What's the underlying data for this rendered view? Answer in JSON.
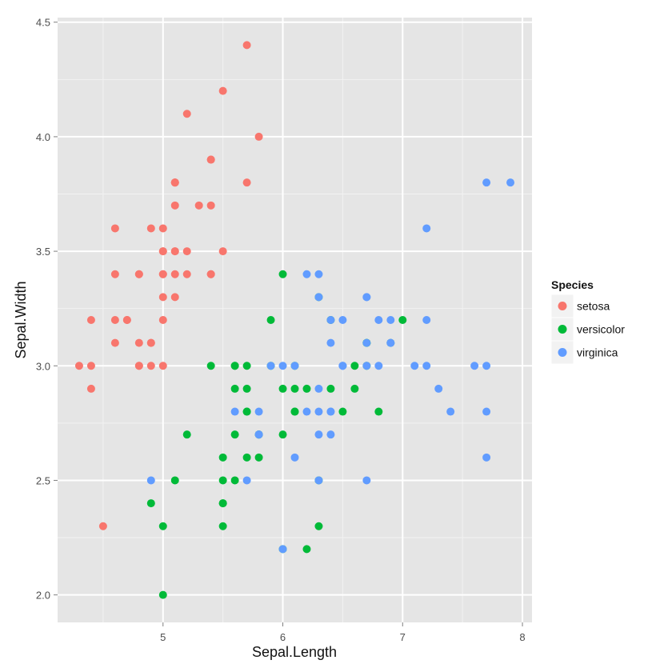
{
  "chart_data": {
    "type": "scatter",
    "xlabel": "Sepal.Length",
    "ylabel": "Sepal.Width",
    "xlim": [
      4.12,
      8.08
    ],
    "ylim": [
      1.88,
      4.52
    ],
    "x_ticks": [
      5,
      6,
      7,
      8
    ],
    "y_ticks": [
      2.0,
      2.5,
      3.0,
      3.5,
      4.0,
      4.5
    ],
    "x_tick_labels": [
      "5",
      "6",
      "7",
      "8"
    ],
    "y_tick_labels": [
      "2.0",
      "2.5",
      "3.0",
      "3.5",
      "4.0",
      "4.5"
    ],
    "grid": true,
    "background": "#e5e5e5",
    "legend": {
      "title": "Species",
      "position": "right"
    },
    "series": [
      {
        "name": "setosa",
        "color": "#f8766d",
        "points": [
          [
            5.1,
            3.5
          ],
          [
            4.9,
            3.0
          ],
          [
            4.7,
            3.2
          ],
          [
            4.6,
            3.1
          ],
          [
            5.0,
            3.6
          ],
          [
            5.4,
            3.9
          ],
          [
            4.6,
            3.4
          ],
          [
            5.0,
            3.4
          ],
          [
            4.4,
            2.9
          ],
          [
            4.9,
            3.1
          ],
          [
            5.4,
            3.7
          ],
          [
            4.8,
            3.4
          ],
          [
            4.8,
            3.0
          ],
          [
            4.3,
            3.0
          ],
          [
            5.8,
            4.0
          ],
          [
            5.7,
            4.4
          ],
          [
            5.4,
            3.9
          ],
          [
            5.1,
            3.5
          ],
          [
            5.7,
            3.8
          ],
          [
            5.1,
            3.8
          ],
          [
            5.4,
            3.4
          ],
          [
            5.1,
            3.7
          ],
          [
            4.6,
            3.6
          ],
          [
            5.1,
            3.3
          ],
          [
            4.8,
            3.4
          ],
          [
            5.0,
            3.0
          ],
          [
            5.0,
            3.4
          ],
          [
            5.2,
            3.5
          ],
          [
            5.2,
            3.4
          ],
          [
            4.7,
            3.2
          ],
          [
            4.8,
            3.1
          ],
          [
            5.4,
            3.4
          ],
          [
            5.2,
            4.1
          ],
          [
            5.5,
            4.2
          ],
          [
            4.9,
            3.1
          ],
          [
            5.0,
            3.2
          ],
          [
            5.5,
            3.5
          ],
          [
            4.9,
            3.6
          ],
          [
            4.4,
            3.0
          ],
          [
            5.1,
            3.4
          ],
          [
            5.0,
            3.5
          ],
          [
            4.5,
            2.3
          ],
          [
            4.4,
            3.2
          ],
          [
            5.0,
            3.5
          ],
          [
            5.1,
            3.8
          ],
          [
            4.8,
            3.0
          ],
          [
            5.1,
            3.8
          ],
          [
            4.6,
            3.2
          ],
          [
            5.3,
            3.7
          ],
          [
            5.0,
            3.3
          ]
        ]
      },
      {
        "name": "versicolor",
        "color": "#00ba38",
        "points": [
          [
            7.0,
            3.2
          ],
          [
            6.4,
            3.2
          ],
          [
            6.9,
            3.1
          ],
          [
            5.5,
            2.3
          ],
          [
            6.5,
            2.8
          ],
          [
            5.7,
            2.8
          ],
          [
            6.3,
            3.3
          ],
          [
            4.9,
            2.4
          ],
          [
            6.6,
            2.9
          ],
          [
            5.2,
            2.7
          ],
          [
            5.0,
            2.0
          ],
          [
            5.9,
            3.0
          ],
          [
            6.0,
            2.2
          ],
          [
            6.1,
            2.9
          ],
          [
            5.6,
            2.9
          ],
          [
            6.7,
            3.1
          ],
          [
            5.6,
            3.0
          ],
          [
            5.8,
            2.7
          ],
          [
            6.2,
            2.2
          ],
          [
            5.6,
            2.5
          ],
          [
            5.9,
            3.2
          ],
          [
            6.1,
            2.8
          ],
          [
            6.3,
            2.5
          ],
          [
            6.1,
            2.8
          ],
          [
            6.4,
            2.9
          ],
          [
            6.6,
            3.0
          ],
          [
            6.8,
            2.8
          ],
          [
            6.7,
            3.0
          ],
          [
            6.0,
            2.9
          ],
          [
            5.7,
            2.6
          ],
          [
            5.5,
            2.4
          ],
          [
            5.5,
            2.4
          ],
          [
            5.8,
            2.7
          ],
          [
            6.0,
            2.7
          ],
          [
            5.4,
            3.0
          ],
          [
            6.0,
            3.4
          ],
          [
            6.7,
            3.1
          ],
          [
            6.3,
            2.3
          ],
          [
            5.6,
            3.0
          ],
          [
            5.5,
            2.5
          ],
          [
            5.5,
            2.6
          ],
          [
            6.1,
            3.0
          ],
          [
            5.8,
            2.6
          ],
          [
            5.0,
            2.3
          ],
          [
            5.6,
            2.7
          ],
          [
            5.7,
            3.0
          ],
          [
            5.7,
            2.9
          ],
          [
            6.2,
            2.9
          ],
          [
            5.1,
            2.5
          ],
          [
            5.7,
            2.8
          ]
        ]
      },
      {
        "name": "virginica",
        "color": "#619cff",
        "points": [
          [
            6.3,
            3.3
          ],
          [
            5.8,
            2.7
          ],
          [
            7.1,
            3.0
          ],
          [
            6.3,
            2.9
          ],
          [
            6.5,
            3.0
          ],
          [
            7.6,
            3.0
          ],
          [
            4.9,
            2.5
          ],
          [
            7.3,
            2.9
          ],
          [
            6.7,
            2.5
          ],
          [
            7.2,
            3.6
          ],
          [
            6.5,
            3.2
          ],
          [
            6.4,
            2.7
          ],
          [
            6.8,
            3.0
          ],
          [
            5.7,
            2.5
          ],
          [
            5.8,
            2.8
          ],
          [
            6.4,
            3.2
          ],
          [
            6.5,
            3.0
          ],
          [
            7.7,
            3.8
          ],
          [
            7.7,
            2.6
          ],
          [
            6.0,
            2.2
          ],
          [
            6.9,
            3.2
          ],
          [
            5.6,
            2.8
          ],
          [
            7.7,
            2.8
          ],
          [
            6.3,
            2.7
          ],
          [
            6.7,
            3.3
          ],
          [
            7.2,
            3.2
          ],
          [
            6.2,
            2.8
          ],
          [
            6.1,
            3.0
          ],
          [
            6.4,
            2.8
          ],
          [
            7.2,
            3.0
          ],
          [
            7.4,
            2.8
          ],
          [
            7.9,
            3.8
          ],
          [
            6.4,
            2.8
          ],
          [
            6.3,
            2.8
          ],
          [
            6.1,
            2.6
          ],
          [
            7.7,
            3.0
          ],
          [
            6.3,
            3.4
          ],
          [
            6.4,
            3.1
          ],
          [
            6.0,
            3.0
          ],
          [
            6.9,
            3.1
          ],
          [
            6.7,
            3.1
          ],
          [
            6.9,
            3.1
          ],
          [
            5.8,
            2.7
          ],
          [
            6.8,
            3.2
          ],
          [
            6.7,
            3.3
          ],
          [
            6.7,
            3.0
          ],
          [
            6.3,
            2.5
          ],
          [
            6.5,
            3.0
          ],
          [
            6.2,
            3.4
          ],
          [
            5.9,
            3.0
          ]
        ]
      }
    ]
  }
}
